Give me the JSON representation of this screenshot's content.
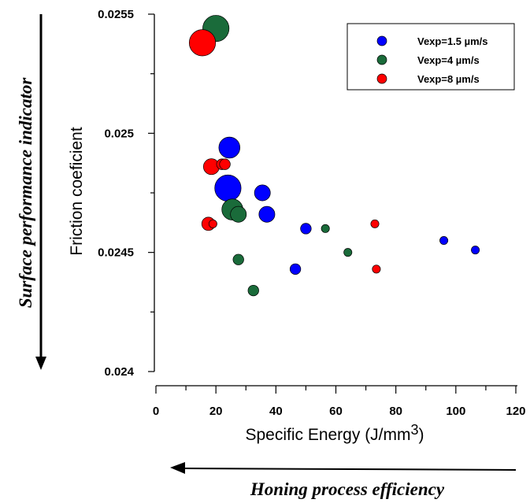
{
  "chart_data": {
    "type": "scatter",
    "xlabel": "Specific Energy (J/mm",
    "xlabel_superscript": "3",
    "ylabel": "Friction coeficient",
    "xlim": [
      0,
      120
    ],
    "ylim": [
      0.024,
      0.0255
    ],
    "x_ticks": [
      "0",
      "20",
      "40",
      "60",
      "80",
      "100",
      "120"
    ],
    "y_ticks": [
      "0.024",
      "0.0245",
      "0.025",
      "0.0255"
    ],
    "grid": false,
    "legend_position": "top-right",
    "series": [
      {
        "name": "Vexp=1.5 µm/s",
        "color": "#0000ff",
        "points": [
          {
            "x": 24.5,
            "y": 0.02494,
            "size": 3
          },
          {
            "x": 24.0,
            "y": 0.02477,
            "size": 4
          },
          {
            "x": 35.5,
            "y": 0.02475,
            "size": 2
          },
          {
            "x": 37.0,
            "y": 0.02466,
            "size": 2
          },
          {
            "x": 50.0,
            "y": 0.0246,
            "size": 1
          },
          {
            "x": 96.0,
            "y": 0.02455,
            "size": 0.5
          },
          {
            "x": 106.5,
            "y": 0.02451,
            "size": 0.5
          },
          {
            "x": 46.5,
            "y": 0.02443,
            "size": 1
          }
        ]
      },
      {
        "name": "Vexp=4 µm/s",
        "color": "#1a6b3a",
        "points": [
          {
            "x": 20.0,
            "y": 0.02544,
            "size": 4
          },
          {
            "x": 25.5,
            "y": 0.02468,
            "size": 3
          },
          {
            "x": 27.5,
            "y": 0.02466,
            "size": 2
          },
          {
            "x": 56.5,
            "y": 0.0246,
            "size": 0.5
          },
          {
            "x": 64.0,
            "y": 0.0245,
            "size": 0.5
          },
          {
            "x": 27.5,
            "y": 0.02447,
            "size": 1
          },
          {
            "x": 32.5,
            "y": 0.02434,
            "size": 1
          }
        ]
      },
      {
        "name": "Vexp=8 µm/s",
        "color": "#ff0000",
        "points": [
          {
            "x": 15.5,
            "y": 0.02538,
            "size": 4
          },
          {
            "x": 18.5,
            "y": 0.02486,
            "size": 2
          },
          {
            "x": 22.0,
            "y": 0.02487,
            "size": 1
          },
          {
            "x": 23.0,
            "y": 0.02487,
            "size": 1
          },
          {
            "x": 17.5,
            "y": 0.02462,
            "size": 1.5
          },
          {
            "x": 19.0,
            "y": 0.02462,
            "size": 0.5
          },
          {
            "x": 73.0,
            "y": 0.02462,
            "size": 0.5
          },
          {
            "x": 73.5,
            "y": 0.02443,
            "size": 0.5
          }
        ]
      }
    ]
  },
  "annotations": {
    "left_arrow_label": "Surface performance indicator",
    "bottom_arrow_label": "Honing process efficiency"
  }
}
